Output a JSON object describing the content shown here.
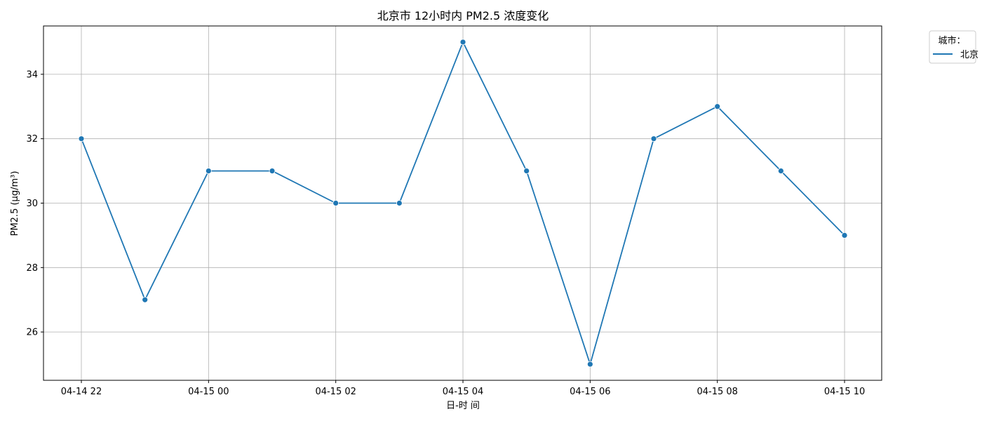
{
  "chart_data": {
    "type": "line",
    "title": "北京市 12小时内 PM2.5 浓度变化",
    "xlabel": "日-时 间",
    "ylabel": "PM2.5 (μg/m³)",
    "x": [
      "2025-04-14 22:00",
      "2025-04-14 23:00",
      "2025-04-15 00:00",
      "2025-04-15 01:00",
      "2025-04-15 02:00",
      "2025-04-15 03:00",
      "2025-04-15 04:00",
      "2025-04-15 05:00",
      "2025-04-15 06:00",
      "2025-04-15 07:00",
      "2025-04-15 08:00",
      "2025-04-15 09:00",
      "2025-04-15 10:00"
    ],
    "x_ticks": [
      "04-14 22",
      "04-15 00",
      "04-15 02",
      "04-15 04",
      "04-15 06",
      "04-15 08",
      "04-15 10"
    ],
    "series": [
      {
        "name": "北京",
        "values": [
          32,
          27,
          31,
          31,
          30,
          30,
          35,
          31,
          25,
          32,
          33,
          31,
          29
        ],
        "color": "#1f77b4"
      }
    ],
    "ylim": [
      24.5,
      35.5
    ],
    "y_ticks": [
      26,
      28,
      30,
      32,
      34
    ],
    "legend": {
      "title": "城市：",
      "placement": "outside-top-right"
    },
    "grid": true
  }
}
